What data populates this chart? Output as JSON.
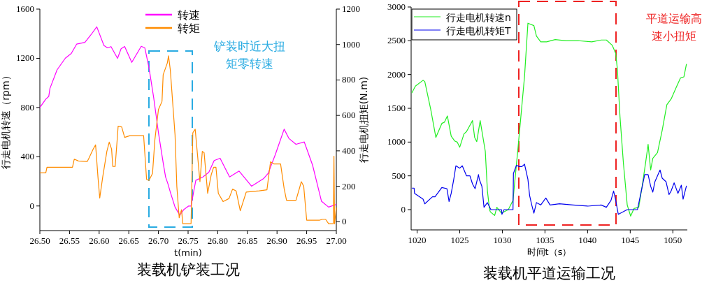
{
  "chart_data": [
    {
      "type": "line",
      "title": "装载机铲装工况",
      "xlabel": "t(min)",
      "ylabel": "行走电机转速（rpm）",
      "y2label": "行走电机扭矩(N.m)",
      "xlim": [
        26.5,
        27.0
      ],
      "xticks": [
        {
          "value": 26.5,
          "label": "26.50"
        },
        26.55,
        {
          "value": 26.6,
          "label": "26.60"
        },
        26.65,
        {
          "value": 26.7,
          "label": "26.70"
        },
        26.75,
        {
          "value": 26.8,
          "label": "26.80"
        },
        26.85,
        {
          "value": 26.9,
          "label": "26.90"
        },
        26.95,
        {
          "value": 27.0,
          "label": "27.00"
        }
      ],
      "ylim": [
        -200,
        1600
      ],
      "yticks": [
        0,
        400,
        800,
        1200,
        1600
      ],
      "y2lim": [
        -50,
        1200
      ],
      "y2ticks": [
        0,
        200,
        400,
        600,
        800,
        1000,
        1200
      ],
      "grid": false,
      "legend": "top",
      "line_style": "solid",
      "annotations": [
        "铲装时近大扭矩零转速"
      ],
      "series": [
        {
          "name": "转速",
          "color": "#ff00ff",
          "x": [
            26.5,
            26.51,
            26.515,
            26.517,
            26.529,
            26.543,
            26.553,
            26.562,
            26.576,
            26.586,
            26.596,
            26.608,
            26.614,
            26.62,
            26.631,
            26.637,
            26.643,
            26.655,
            26.671,
            26.677,
            26.684,
            26.692,
            26.7,
            26.708,
            26.712,
            26.716,
            26.72,
            26.728,
            26.736,
            26.743,
            26.751,
            26.755,
            26.759,
            26.763,
            26.775,
            26.785,
            26.794,
            26.804,
            26.82,
            26.836,
            26.857,
            26.877,
            26.885,
            26.897,
            26.912,
            26.92,
            26.932,
            26.946,
            26.96,
            26.975,
            26.987,
            27.0
          ],
          "values": [
            800,
            868,
            890,
            955,
            1106,
            1201,
            1239,
            1315,
            1330,
            1390,
            1456,
            1305,
            1285,
            1295,
            1200,
            1278,
            1296,
            1167,
            1298,
            1285,
            1125,
            880,
            596,
            350,
            236,
            180,
            113,
            -9,
            -75,
            -28,
            0,
            0,
            104,
            208,
            236,
            274,
            369,
            388,
            236,
            284,
            161,
            221,
            265,
            416,
            624,
            549,
            501,
            520,
            331,
            38,
            -9,
            13
          ]
        },
        {
          "name": "转矩",
          "color": "#ff8c00",
          "axis": "y2",
          "x": [
            26.5,
            26.51,
            26.512,
            26.535,
            26.555,
            26.558,
            26.565,
            26.58,
            26.582,
            26.59,
            26.594,
            26.598,
            26.601,
            26.606,
            26.613,
            26.617,
            26.621,
            26.623,
            26.627,
            26.631,
            26.632,
            26.638,
            26.643,
            26.652,
            26.668,
            26.675,
            26.68,
            26.684,
            26.69,
            26.694,
            26.7,
            26.706,
            26.708,
            26.715,
            26.717,
            26.72,
            26.728,
            26.731,
            26.735,
            26.737,
            26.739,
            26.741,
            26.755,
            26.758,
            26.762,
            26.765,
            26.77,
            26.774,
            26.777,
            26.783,
            26.789,
            26.793,
            26.797,
            26.801,
            26.809,
            26.819,
            26.825,
            26.831,
            26.838,
            26.848,
            26.87,
            26.883,
            26.889,
            26.895,
            26.906,
            26.912,
            26.916,
            26.932,
            26.941,
            26.945,
            26.95,
            26.972,
            26.976,
            26.982,
            26.987,
            26.995,
            26.996,
            26.997,
            27.0
          ],
          "values": [
            276,
            276,
            307,
            307,
            307,
            353,
            343,
            340,
            353,
            410,
            434,
            252,
            134,
            252,
            397,
            449,
            410,
            312,
            312,
            489,
            539,
            535,
            476,
            486,
            486,
            486,
            239,
            233,
            272,
            463,
            633,
            679,
            830,
            896,
            936,
            857,
            489,
            200,
            22,
            48,
            68,
            -11,
            -11,
            502,
            522,
            410,
            226,
            397,
            390,
            160,
            265,
            307,
            307,
            160,
            114,
            131,
            184,
            174,
            62,
            167,
            174,
            180,
            338,
            326,
            326,
            187,
            121,
            121,
            226,
            200,
            9,
            9,
            13,
            13,
            -11,
            -11,
            370,
            -11,
            80
          ]
        }
      ]
    },
    {
      "type": "line",
      "title": "装载机平道运输工况",
      "xlabel": "时间t（s）",
      "xlim": [
        1019.3,
        1051.7
      ],
      "xticks": [
        1020,
        1025,
        1030,
        1035,
        1040,
        1045,
        1050
      ],
      "ylim": [
        -300,
        3000
      ],
      "yticks": [
        0,
        500,
        1000,
        1500,
        2000,
        2500,
        3000
      ],
      "grid": false,
      "legend": "top left",
      "line_style": "solid",
      "annotations": [
        "平道运输高速小扭矩"
      ],
      "series": [
        {
          "name": "行走电机转速n",
          "color": "#22ee22",
          "x": [
            1019.37,
            1019.8,
            1020.7,
            1020.9,
            1021.6,
            1022.2,
            1022.9,
            1023.2,
            1023.55,
            1024.0,
            1024.4,
            1024.7,
            1025.0,
            1025.5,
            1025.8,
            1026.5,
            1026.75,
            1027.0,
            1027.4,
            1028.0,
            1028.25,
            1028.5,
            1028.6,
            1029.1,
            1029.35,
            1029.9,
            1030.7,
            1031.25,
            1031.8,
            1032.35,
            1032.6,
            1033.0,
            1033.7,
            1034.0,
            1034.5,
            1035.2,
            1036.2,
            1037.5,
            1038.9,
            1040.5,
            1041.6,
            1042.2,
            1042.9,
            1043.3,
            1043.5,
            1043.8,
            1044.2,
            1044.65,
            1045.05,
            1045.45,
            1046.0,
            1046.4,
            1046.8,
            1047.1,
            1047.4,
            1047.65,
            1048.2,
            1048.75,
            1049.3,
            1049.8,
            1050.4,
            1050.9,
            1051.3,
            1051.6
          ],
          "values": [
            1725,
            1829,
            1915,
            1897,
            1483,
            1069,
            1276,
            1294,
            1387,
            1087,
            1017,
            1000,
            924,
            1121,
            1156,
            1318,
            1069,
            1007,
            1318,
            862,
            276,
            0,
            -35,
            -86,
            34,
            -52,
            0,
            138,
            862,
            1622,
            1967,
            2760,
            2725,
            2570,
            2484,
            2484,
            2518,
            2500,
            2501,
            2484,
            2511,
            2511,
            2432,
            2311,
            2070,
            1380,
            690,
            69,
            -96,
            17,
            35,
            345,
            690,
            966,
            587,
            759,
            845,
            1173,
            1553,
            1638,
            1811,
            1949,
            1966,
            2156
          ]
        },
        {
          "name": "行走电机转矩T",
          "color": "#0000ee",
          "x": [
            1019.37,
            1019.65,
            1019.7,
            1020.7,
            1020.9,
            1021.8,
            1022.1,
            1022.9,
            1023.5,
            1023.75,
            1024.0,
            1024.3,
            1024.55,
            1025.0,
            1025.3,
            1025.8,
            1026.2,
            1026.5,
            1026.8,
            1027.2,
            1027.3,
            1027.6,
            1027.85,
            1028.25,
            1028.65,
            1029.9,
            1029.95,
            1030.2,
            1031.25,
            1031.3,
            1031.65,
            1032.0,
            1032.3,
            1032.6,
            1033.0,
            1033.2,
            1033.45,
            1033.7,
            1034.0,
            1034.5,
            1035.1,
            1035.6,
            1036.7,
            1038.3,
            1040.0,
            1041.6,
            1042.2,
            1042.75,
            1043.05,
            1043.3,
            1043.6,
            1044.65,
            1045.85,
            1046.3,
            1046.7,
            1047.1,
            1047.4,
            1047.65,
            1047.9,
            1048.5,
            1048.75,
            1049.2,
            1049.55,
            1049.8,
            1050.15,
            1050.6,
            1051.0,
            1051.2,
            1051.6
          ],
          "values": [
            318,
            318,
            241,
            155,
            86,
            190,
            190,
            328,
            310,
            121,
            241,
            448,
            649,
            614,
            649,
            500,
            500,
            380,
            310,
            518,
            448,
            345,
            34,
            104,
            0,
            0,
            -69,
            0,
            0,
            535,
            655,
            638,
            638,
            673,
            448,
            207,
            69,
            -52,
            104,
            69,
            172,
            69,
            86,
            69,
            52,
            69,
            35,
            138,
            276,
            138,
            -69,
            0,
            0,
            276,
            518,
            518,
            345,
            259,
            414,
            587,
            466,
            414,
            224,
            276,
            397,
            241,
            362,
            155,
            352
          ]
        }
      ]
    }
  ]
}
